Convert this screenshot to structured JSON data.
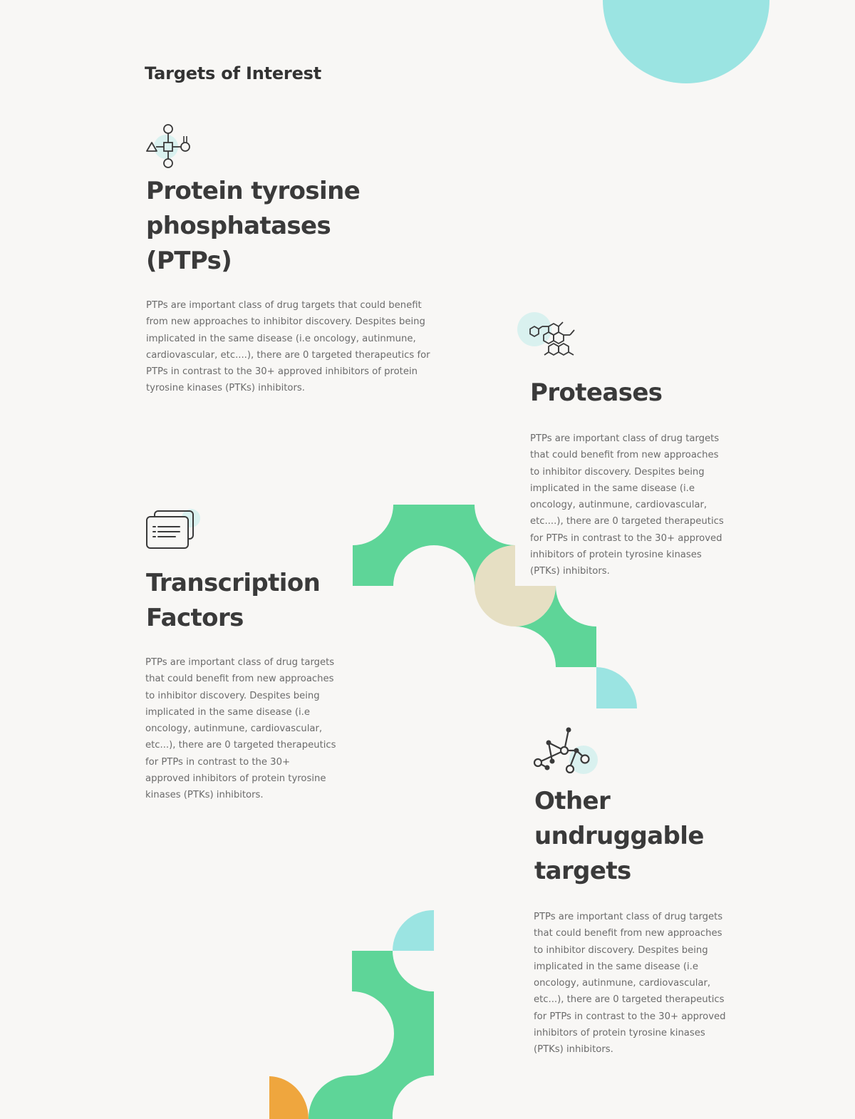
{
  "section": {
    "title": "Targets of Interest"
  },
  "colors": {
    "background": "#f8f7f5",
    "green": "#5ed598",
    "teal": "#9be4e2",
    "beige": "#e6dfc3",
    "orange": "#efa63e",
    "heading": "#3a3a3a",
    "body_text": "#6b6b6b"
  },
  "cards": [
    {
      "icon": "molecule-network-icon",
      "title": "Protein tyrosine phosphatases (PTPs)",
      "body": "PTPs are important class of drug targets that could benefit from new approaches to inhibitor discovery. Despites being implicated in the same disease (i.e oncology, autinmune, cardiovascular, etc....), there are 0 targeted therapeutics for PTPs in contrast to the 30+ approved inhibitors of protein tyrosine kinases (PTKs) inhibitors."
    },
    {
      "icon": "hexagon-chain-icon",
      "title": "Proteases",
      "body": "PTPs are important class of drug targets that could benefit from new approaches to inhibitor discovery. Despites being implicated in the same disease (i.e oncology, autinmune, cardiovascular, etc....), there are 0 targeted therapeutics for PTPs in contrast to the 30+ approved inhibitors of protein tyrosine kinases (PTKs) inhibitors."
    },
    {
      "icon": "document-cards-icon",
      "title": "Transcription Factors",
      "body": "PTPs are important class of drug targets that could benefit from new approaches to inhibitor discovery. Despites being implicated in the same disease (i.e oncology, autinmune, cardiovascular, etc...), there are 0 targeted therapeutics for PTPs in contrast to the 30+ approved inhibitors of protein tyrosine kinases (PTKs) inhibitors."
    },
    {
      "icon": "node-graph-icon",
      "title": "Other undruggable targets",
      "body": "PTPs are important class of drug targets that could benefit from new approaches to inhibitor discovery. Despites being implicated in the same disease (i.e oncology, autinmune, cardiovascular, etc...), there are 0 targeted therapeutics for PTPs in contrast to the 30+ approved inhibitors of protein tyrosine kinases (PTKs) inhibitors."
    }
  ]
}
